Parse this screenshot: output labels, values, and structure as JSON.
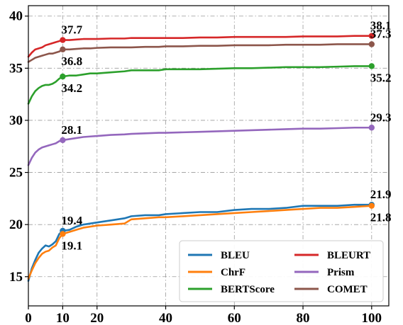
{
  "chart_data": {
    "type": "line",
    "title": "",
    "xlabel": "",
    "ylabel": "",
    "xlim": [
      0,
      105
    ],
    "ylim": [
      12.2,
      41
    ],
    "xticks": [
      0,
      10,
      20,
      40,
      60,
      80,
      100
    ],
    "yticks": [
      15,
      20,
      25,
      30,
      35,
      40
    ],
    "grid": true,
    "legend_position": "bottom-right",
    "series": [
      {
        "name": "BLEU",
        "color": "#1f77b4",
        "x": [
          0,
          1,
          2,
          3,
          4,
          5,
          6,
          7,
          8,
          9,
          10,
          12,
          14,
          16,
          18,
          20,
          24,
          28,
          30,
          34,
          38,
          40,
          45,
          50,
          55,
          60,
          65,
          70,
          75,
          80,
          85,
          90,
          95,
          100
        ],
        "y": [
          14.6,
          15.8,
          16.6,
          17.3,
          17.7,
          18.0,
          17.9,
          18.1,
          18.4,
          19.1,
          19.4,
          19.5,
          19.8,
          20.0,
          20.1,
          20.2,
          20.4,
          20.6,
          20.8,
          20.9,
          20.9,
          21.0,
          21.1,
          21.2,
          21.2,
          21.4,
          21.5,
          21.5,
          21.6,
          21.8,
          21.8,
          21.8,
          21.9,
          21.9
        ],
        "labels": [
          {
            "x": 10,
            "y": 19.4,
            "text": "19.4"
          },
          {
            "x": 100,
            "y": 21.9,
            "text": "21.9"
          }
        ]
      },
      {
        "name": "ChrF",
        "color": "#ff7f0e",
        "x": [
          0,
          1,
          2,
          3,
          4,
          5,
          6,
          7,
          8,
          9,
          10,
          12,
          14,
          16,
          18,
          20,
          24,
          28,
          30,
          34,
          38,
          40,
          45,
          50,
          55,
          60,
          65,
          70,
          75,
          80,
          85,
          90,
          95,
          100
        ],
        "y": [
          14.8,
          15.6,
          16.3,
          16.8,
          17.2,
          17.4,
          17.5,
          17.8,
          18.0,
          18.7,
          19.1,
          19.3,
          19.5,
          19.7,
          19.8,
          19.9,
          20.0,
          20.1,
          20.5,
          20.6,
          20.7,
          20.7,
          20.8,
          20.9,
          21.0,
          21.1,
          21.2,
          21.3,
          21.4,
          21.5,
          21.6,
          21.6,
          21.7,
          21.8
        ],
        "labels": [
          {
            "x": 10,
            "y": 19.1,
            "text": "19.1"
          },
          {
            "x": 100,
            "y": 21.8,
            "text": "21.8"
          }
        ]
      },
      {
        "name": "BERTScore",
        "color": "#2ca02c",
        "x": [
          0,
          1,
          2,
          3,
          4,
          5,
          6,
          7,
          8,
          9,
          10,
          12,
          14,
          16,
          18,
          20,
          24,
          28,
          30,
          34,
          38,
          40,
          45,
          50,
          55,
          60,
          65,
          70,
          75,
          80,
          85,
          90,
          95,
          100
        ],
        "y": [
          31.6,
          32.3,
          32.8,
          33.1,
          33.3,
          33.4,
          33.4,
          33.5,
          33.7,
          34.0,
          34.2,
          34.3,
          34.3,
          34.4,
          34.5,
          34.5,
          34.6,
          34.7,
          34.8,
          34.8,
          34.8,
          34.9,
          34.9,
          34.9,
          34.95,
          35.0,
          35.0,
          35.05,
          35.1,
          35.1,
          35.1,
          35.15,
          35.2,
          35.2
        ],
        "labels": [
          {
            "x": 10,
            "y": 34.2,
            "text": "34.2"
          },
          {
            "x": 100,
            "y": 35.2,
            "text": "35.2"
          }
        ]
      },
      {
        "name": "BLEURT",
        "color": "#d62728",
        "x": [
          0,
          1,
          2,
          3,
          4,
          5,
          6,
          7,
          8,
          9,
          10,
          12,
          14,
          16,
          18,
          20,
          24,
          28,
          30,
          34,
          38,
          40,
          45,
          50,
          55,
          60,
          65,
          70,
          75,
          80,
          85,
          90,
          95,
          100
        ],
        "y": [
          36.1,
          36.5,
          36.8,
          36.9,
          37.0,
          37.2,
          37.3,
          37.4,
          37.5,
          37.6,
          37.7,
          37.7,
          37.75,
          37.8,
          37.8,
          37.8,
          37.85,
          37.85,
          37.9,
          37.9,
          37.9,
          37.9,
          37.9,
          37.95,
          37.95,
          38.0,
          38.0,
          38.0,
          38.0,
          38.05,
          38.05,
          38.05,
          38.1,
          38.1
        ],
        "labels": [
          {
            "x": 10,
            "y": 37.7,
            "text": "37.7"
          },
          {
            "x": 100,
            "y": 38.1,
            "text": "38.1"
          }
        ]
      },
      {
        "name": "Prism",
        "color": "#9467bd",
        "x": [
          0,
          1,
          2,
          3,
          4,
          5,
          6,
          7,
          8,
          9,
          10,
          12,
          14,
          16,
          18,
          20,
          24,
          28,
          30,
          34,
          38,
          40,
          45,
          50,
          55,
          60,
          65,
          70,
          75,
          80,
          85,
          90,
          95,
          100
        ],
        "y": [
          25.7,
          26.4,
          26.9,
          27.2,
          27.4,
          27.5,
          27.6,
          27.7,
          27.8,
          28.0,
          28.1,
          28.2,
          28.3,
          28.4,
          28.45,
          28.5,
          28.6,
          28.65,
          28.7,
          28.75,
          28.8,
          28.8,
          28.85,
          28.9,
          28.95,
          29.0,
          29.05,
          29.1,
          29.15,
          29.2,
          29.2,
          29.25,
          29.3,
          29.3
        ],
        "labels": [
          {
            "x": 10,
            "y": 28.1,
            "text": "28.1"
          },
          {
            "x": 100,
            "y": 29.3,
            "text": "29.3"
          }
        ]
      },
      {
        "name": "COMET",
        "color": "#8c564b",
        "x": [
          0,
          1,
          2,
          3,
          4,
          5,
          6,
          7,
          8,
          9,
          10,
          12,
          14,
          16,
          18,
          20,
          24,
          28,
          30,
          34,
          38,
          40,
          45,
          50,
          55,
          60,
          65,
          70,
          75,
          80,
          85,
          90,
          95,
          100
        ],
        "y": [
          35.6,
          35.8,
          36.0,
          36.1,
          36.2,
          36.3,
          36.4,
          36.4,
          36.5,
          36.6,
          36.8,
          36.8,
          36.85,
          36.9,
          36.9,
          36.95,
          37.0,
          37.0,
          37.0,
          37.05,
          37.05,
          37.1,
          37.1,
          37.15,
          37.15,
          37.2,
          37.2,
          37.2,
          37.25,
          37.25,
          37.25,
          37.3,
          37.3,
          37.3
        ],
        "labels": [
          {
            "x": 10,
            "y": 36.8,
            "text": "36.8"
          },
          {
            "x": 100,
            "y": 37.3,
            "text": "37.3"
          }
        ]
      }
    ]
  }
}
